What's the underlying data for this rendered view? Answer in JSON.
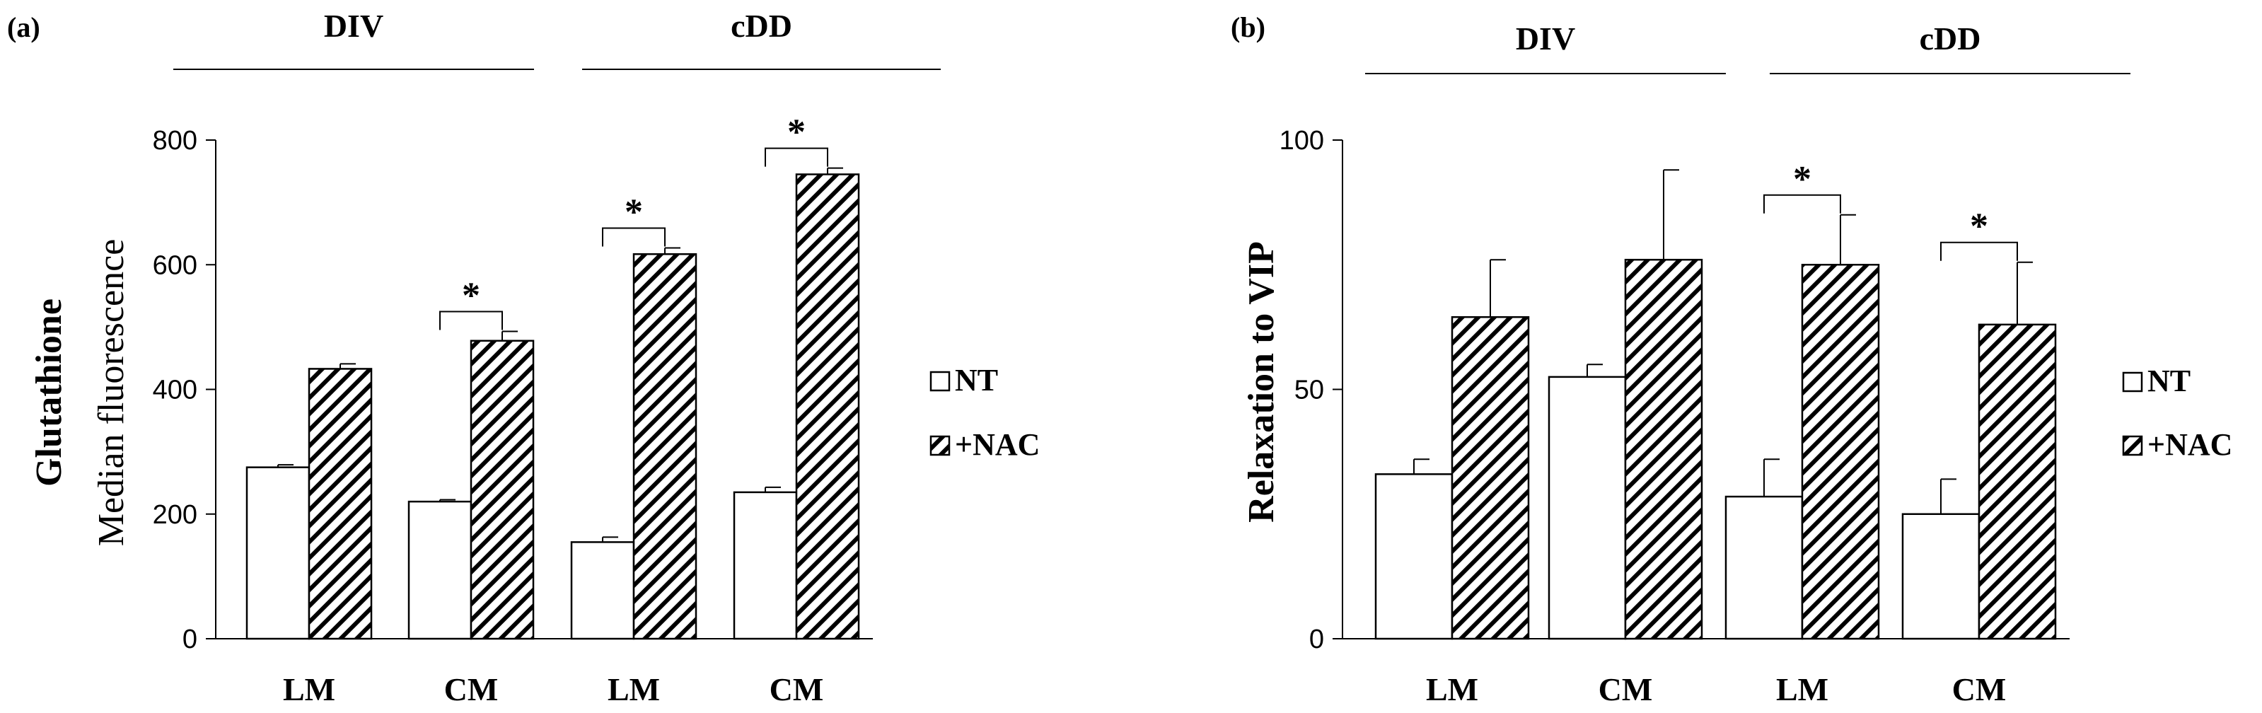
{
  "legend": {
    "nt_label": "NT",
    "nac_label": "+NAC"
  },
  "chart_data": [
    {
      "type": "bar",
      "panel": "(a)",
      "title": "",
      "ylabel_line1": "Glutathione",
      "ylabel_line2": "Median fluorescence",
      "xlabel": "",
      "ylim": [
        0,
        800
      ],
      "yticks": [
        0,
        200,
        400,
        600,
        800
      ],
      "groups": [
        "DIV",
        "cDD"
      ],
      "categories": [
        "LM",
        "CM",
        "LM",
        "CM"
      ],
      "category_group": [
        0,
        0,
        1,
        1
      ],
      "series": [
        {
          "name": "NT",
          "pattern": "open",
          "values": [
            275,
            220,
            155,
            235
          ],
          "errors": [
            4,
            3,
            8,
            8
          ]
        },
        {
          "name": "+NAC",
          "pattern": "hatched",
          "values": [
            433,
            478,
            617,
            745
          ],
          "errors": [
            8,
            15,
            10,
            10
          ]
        }
      ],
      "significance": [
        {
          "category": 1,
          "label": "*"
        },
        {
          "category": 2,
          "label": "*"
        },
        {
          "category": 3,
          "label": "*"
        }
      ]
    },
    {
      "type": "bar",
      "panel": "(b)",
      "title": "",
      "ylabel_line1": "Relaxation to VIP",
      "ylabel_line2": "",
      "xlabel": "",
      "ylim": [
        0,
        100
      ],
      "yticks": [
        0,
        50,
        100
      ],
      "groups": [
        "DIV",
        "cDD"
      ],
      "categories": [
        "LM",
        "CM",
        "LM",
        "CM"
      ],
      "category_group": [
        0,
        0,
        1,
        1
      ],
      "series": [
        {
          "name": "NT",
          "pattern": "open",
          "values": [
            33,
            52.5,
            28.5,
            25
          ],
          "errors": [
            3,
            2.5,
            7.5,
            7
          ]
        },
        {
          "name": "+NAC",
          "pattern": "hatched",
          "values": [
            64.5,
            76,
            75,
            63
          ],
          "errors": [
            11.5,
            18,
            10,
            12.5
          ]
        }
      ],
      "significance": [
        {
          "category": 2,
          "label": "*"
        },
        {
          "category": 3,
          "label": "*"
        }
      ]
    }
  ]
}
